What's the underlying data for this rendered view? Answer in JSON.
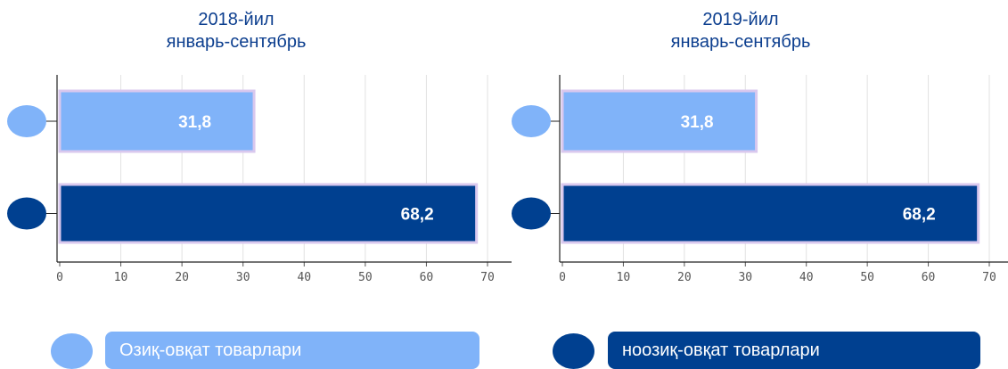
{
  "chart_data": [
    {
      "type": "bar",
      "orientation": "horizontal",
      "title": [
        "2018-йил",
        "январь-сентябрь"
      ],
      "categories": [
        "Озиқ-овқат товарлари",
        "ноозиқ-овқат товарлари"
      ],
      "values": [
        31.8,
        68.2
      ],
      "value_labels": [
        "31,8",
        "68,2"
      ],
      "colors": [
        "#80b3f9",
        "#004090"
      ],
      "xlim": [
        0,
        70
      ],
      "xticks": [
        0,
        10,
        20,
        30,
        40,
        50,
        60,
        70
      ],
      "grid": true
    },
    {
      "type": "bar",
      "orientation": "horizontal",
      "title": [
        "2019-йил",
        "январь-сентябрь"
      ],
      "categories": [
        "Озиқ-овқат товарлари",
        "ноозиқ-овқат товарлари"
      ],
      "values": [
        31.8,
        68.2
      ],
      "value_labels": [
        "31,8",
        "68,2"
      ],
      "colors": [
        "#80b3f9",
        "#004090"
      ],
      "xlim": [
        0,
        70
      ],
      "xticks": [
        0,
        10,
        20,
        30,
        40,
        50,
        60,
        70
      ],
      "grid": true
    }
  ],
  "legend": {
    "placement": "bottom",
    "items": [
      {
        "label": "Озиқ-овқат товарлари",
        "color": "#80b3f9"
      },
      {
        "label": "ноозиқ-овқат товарлари",
        "color": "#004090"
      }
    ]
  },
  "colors": {
    "title": "#0d3f8f",
    "bar_border": "#d9c8ee",
    "grid": "#e2e2e2",
    "axis": "#222222"
  }
}
